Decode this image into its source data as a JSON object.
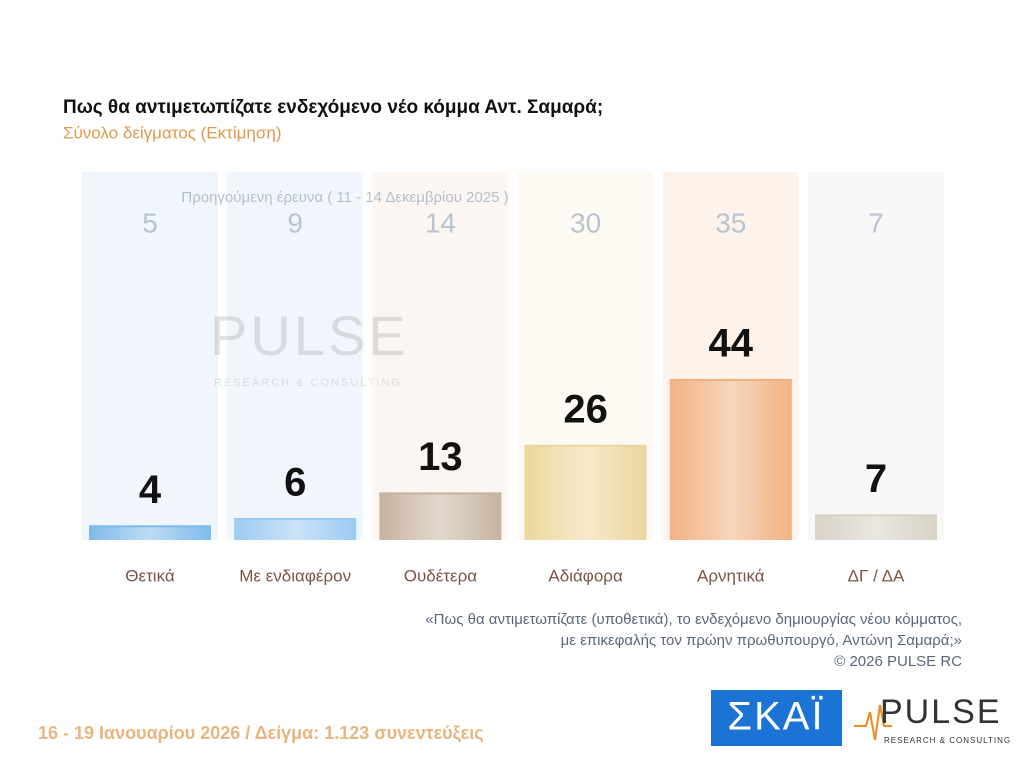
{
  "chart_data": {
    "type": "bar",
    "title": "Πως θα αντιμετωπίζατε ενδεχόμενο νέο κόμμα Αντ. Σαμαρά;",
    "subtitle": "Σύνολο δείγματος  (Εκτίμηση)",
    "categories": [
      "Θετικά",
      "Με ενδιαφέρον",
      "Ουδέτερα",
      "Αδιάφορα",
      "Αρνητικά",
      "ΔΓ / ΔΑ"
    ],
    "values": [
      4,
      6,
      13,
      26,
      44,
      7
    ],
    "colors": [
      "#7fbbea",
      "#9ccbf2",
      "#c4b3a0",
      "#ecd69c",
      "#f0b283",
      "#d9d3c6"
    ],
    "panel_colors": [
      "#f1f6fc",
      "#f1f6fc",
      "#fcf6f2",
      "#fcfaf2",
      "#fdf3ea",
      "#f7f7f7"
    ],
    "previous": {
      "label": "Προηγούμενη έρευνα ( 11 - 14 Δεκεμβρίου 2025 )",
      "values": [
        5,
        9,
        14,
        30,
        35,
        7
      ]
    },
    "footnote": [
      "«Πως θα αντιμετωπίζατε (υποθετικά), το ενδεχόμενο δημιουργίας νέου κόμματος,",
      "με επικεφαλής τον πρώην πρωθυπουργό, Αντώνη Σαμαρά;»",
      "©  2026  PULSE RC"
    ],
    "survey_info": "16 - 19 Ιανουαρίου 2026  /  Δείγμα:  1.123 συνεντεύξεις",
    "logos": {
      "skai": "ΣΚΑΪ",
      "pulse": "PULSE",
      "pulse_sub": "RESEARCH & CONSULTING"
    }
  }
}
